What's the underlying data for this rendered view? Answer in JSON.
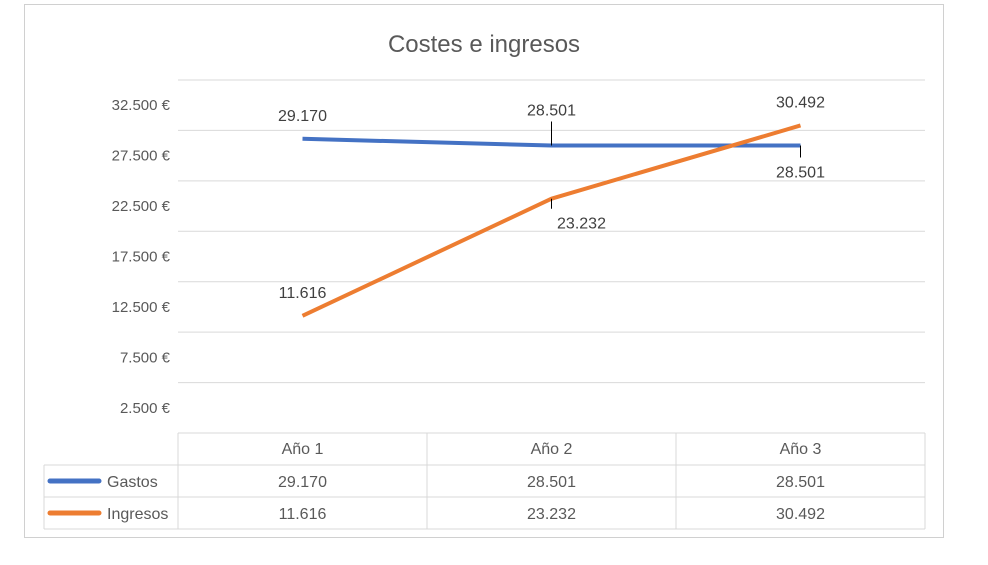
{
  "chart_data": {
    "type": "line",
    "title": "Costes e ingresos",
    "categories": [
      "Año 1",
      "Año 2",
      "Año 3"
    ],
    "series": [
      {
        "name": "Gastos",
        "values": [
          29170,
          28501,
          28501
        ],
        "color": "#4472c4",
        "labels": [
          "29.170",
          "28.501",
          "28.501"
        ]
      },
      {
        "name": "Ingresos",
        "values": [
          11616,
          23232,
          30492
        ],
        "color": "#ed7d31",
        "labels": [
          "11.616",
          "23.232",
          "30.492"
        ]
      }
    ],
    "yticks": [
      2500,
      7500,
      12500,
      17500,
      22500,
      27500,
      32500
    ],
    "ytick_labels": [
      "2.500 €",
      "7.500 €",
      "12.500 €",
      "17.500 €",
      "22.500 €",
      "27.500 €",
      "32.500 €"
    ],
    "grid": true,
    "legend": "data-table"
  }
}
